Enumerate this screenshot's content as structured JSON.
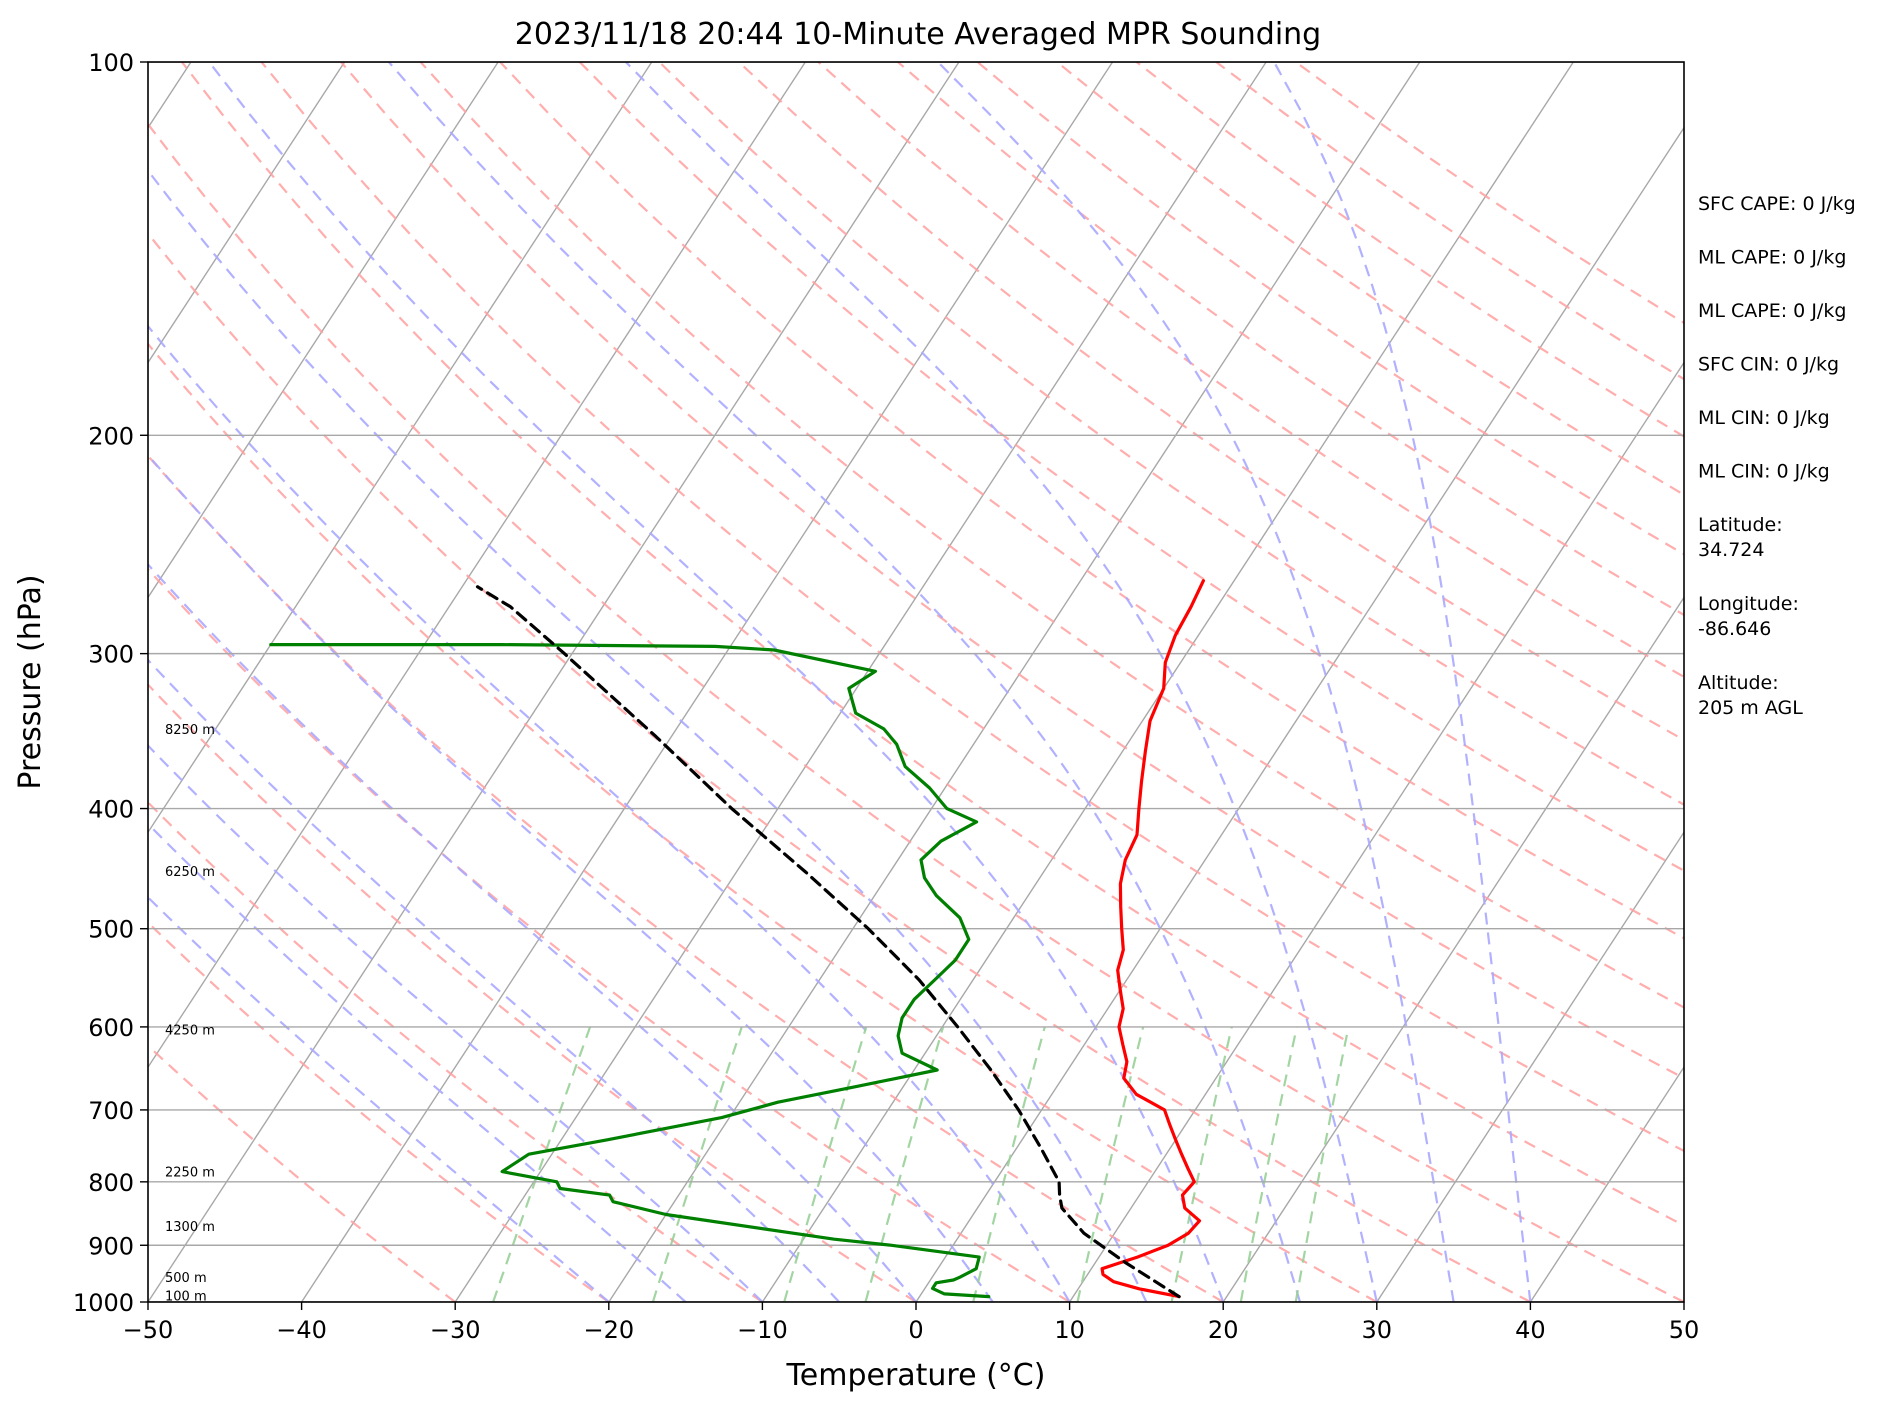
{
  "chart_data": {
    "type": "line",
    "title": "2023/11/18 20:44 10-Minute Averaged MPR Sounding",
    "xlabel": "Temperature (°C)",
    "ylabel": "Pressure (hPa)",
    "xlim": [
      -50,
      50
    ],
    "ylim": [
      1000,
      100
    ],
    "y_scale": "log",
    "skew": "skew-T",
    "grid": true,
    "x_ticks": [
      "−50",
      "−40",
      "−30",
      "−20",
      "−10",
      "0",
      "10",
      "20",
      "30",
      "40",
      "50"
    ],
    "y_ticks": [
      "100",
      "200",
      "300",
      "400",
      "500",
      "600",
      "700",
      "800",
      "900",
      "1000"
    ],
    "height_labels": [
      {
        "p": 988,
        "text": "100 m"
      },
      {
        "p": 955,
        "text": "500 m"
      },
      {
        "p": 868,
        "text": "1300 m"
      },
      {
        "p": 785,
        "text": "2250 m"
      },
      {
        "p": 603,
        "text": "4250 m"
      },
      {
        "p": 449,
        "text": "6250 m"
      },
      {
        "p": 345,
        "text": "8250 m"
      }
    ],
    "info_lines": [
      "SFC CAPE: 0 J/kg",
      "ML CAPE: 0 J/kg",
      "ML CAPE: 0 J/kg",
      "SFC CIN: 0 J/kg",
      "ML CIN: 0 J/kg",
      "ML CIN: 0 J/kg",
      [
        "Latitude:",
        "34.724"
      ],
      [
        "Longitude:",
        "-86.646"
      ],
      [
        "Altitude:",
        "205 m AGL"
      ]
    ],
    "series": [
      {
        "kind": "temperature",
        "color": "#ff0000",
        "points": [
          [
            16.9,
            990
          ],
          [
            14.0,
            976
          ],
          [
            12.0,
            963
          ],
          [
            11.0,
            950
          ],
          [
            10.7,
            940
          ],
          [
            11.6,
            930
          ],
          [
            12.5,
            920
          ],
          [
            14.0,
            900
          ],
          [
            14.8,
            880
          ],
          [
            15.0,
            860
          ],
          [
            13.5,
            840
          ],
          [
            12.8,
            820
          ],
          [
            13.0,
            800
          ],
          [
            12.0,
            780
          ],
          [
            11.0,
            760
          ],
          [
            10.0,
            740
          ],
          [
            9.0,
            720
          ],
          [
            8.0,
            700
          ],
          [
            5.5,
            680
          ],
          [
            4.0,
            660
          ],
          [
            3.5,
            640
          ],
          [
            2.5,
            620
          ],
          [
            1.5,
            600
          ],
          [
            1.0,
            580
          ],
          [
            0.0,
            560
          ],
          [
            -1.0,
            540
          ],
          [
            -1.5,
            520
          ],
          [
            -2.5,
            500
          ],
          [
            -3.5,
            480
          ],
          [
            -4.5,
            460
          ],
          [
            -5.2,
            440
          ],
          [
            -5.5,
            420
          ],
          [
            -6.5,
            400
          ],
          [
            -7.5,
            380
          ],
          [
            -8.5,
            360
          ],
          [
            -9.5,
            340
          ],
          [
            -10.0,
            320
          ],
          [
            -11.0,
            305
          ],
          [
            -11.5,
            290
          ],
          [
            -11.7,
            275
          ],
          [
            -12.0,
            262
          ]
        ]
      },
      {
        "kind": "dewpoint",
        "color": "#008000",
        "points": [
          [
            4.5,
            990
          ],
          [
            1.5,
            985
          ],
          [
            0.5,
            975
          ],
          [
            0.5,
            965
          ],
          [
            1.5,
            960
          ],
          [
            1.8,
            955
          ],
          [
            2.5,
            940
          ],
          [
            2.2,
            920
          ],
          [
            -4.0,
            900
          ],
          [
            -8.0,
            890
          ],
          [
            -20.0,
            850
          ],
          [
            -24.0,
            830
          ],
          [
            -24.5,
            820
          ],
          [
            -28.0,
            810
          ],
          [
            -28.5,
            800
          ],
          [
            -32.5,
            785
          ],
          [
            -31.5,
            760
          ],
          [
            -27.0,
            740
          ],
          [
            -20.5,
            710
          ],
          [
            -17.5,
            690
          ],
          [
            -13.0,
            670
          ],
          [
            -8.5,
            650
          ],
          [
            -11.5,
            630
          ],
          [
            -12.5,
            610
          ],
          [
            -13.0,
            590
          ],
          [
            -13.0,
            570
          ],
          [
            -12.5,
            550
          ],
          [
            -12.0,
            530
          ],
          [
            -12.0,
            510
          ],
          [
            -13.5,
            490
          ],
          [
            -16.0,
            470
          ],
          [
            -17.5,
            455
          ],
          [
            -18.5,
            440
          ],
          [
            -18.0,
            425
          ],
          [
            -16.5,
            410
          ],
          [
            -19.0,
            400
          ],
          [
            -21.0,
            385
          ],
          [
            -23.5,
            370
          ],
          [
            -25.0,
            355
          ],
          [
            -26.5,
            345
          ],
          [
            -29.0,
            335
          ],
          [
            -30.5,
            320
          ],
          [
            -29.5,
            310
          ],
          [
            -37.0,
            298
          ],
          [
            -41.0,
            296
          ],
          [
            -55.0,
            295
          ],
          [
            -70.0,
            295
          ]
        ]
      },
      {
        "kind": "parcel",
        "color": "#000000",
        "dashed": true,
        "points": [
          [
            16.9,
            990
          ],
          [
            12.0,
            930
          ],
          [
            8.0,
            880
          ],
          [
            5.5,
            840
          ],
          [
            4.8,
            820
          ],
          [
            4.2,
            800
          ],
          [
            1.5,
            750
          ],
          [
            -1.5,
            700
          ],
          [
            -5.0,
            650
          ],
          [
            -9.0,
            600
          ],
          [
            -13.5,
            550
          ],
          [
            -19.0,
            500
          ],
          [
            -25.5,
            450
          ],
          [
            -33.0,
            400
          ],
          [
            -41.0,
            350
          ],
          [
            -50.5,
            300
          ],
          [
            -56.0,
            275
          ],
          [
            -59.0,
            265
          ]
        ]
      }
    ],
    "background_lines": {
      "isotherm_color": "#a8a8a8",
      "dry_adiabat_color": "#ff9f9f",
      "moist_adiabat_color": "#a8a8ff",
      "mixing_ratio_color": "#98d098"
    }
  }
}
